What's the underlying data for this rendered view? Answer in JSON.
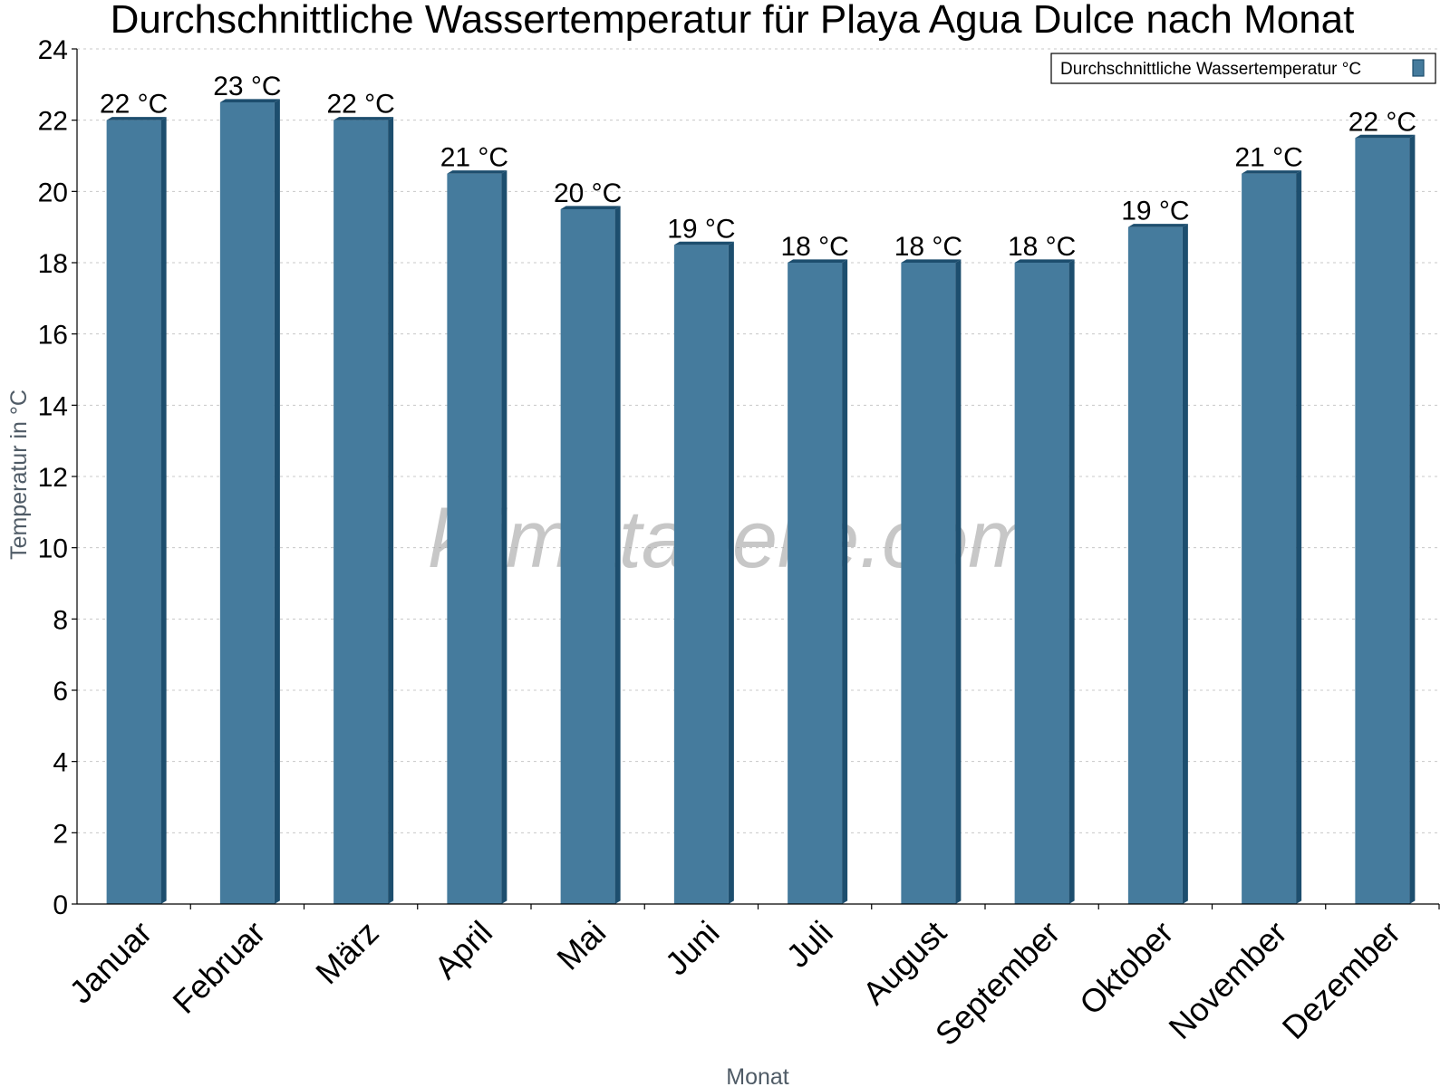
{
  "chart_data": {
    "type": "bar",
    "title": "Durchschnittliche Wassertemperatur für Playa Agua Dulce nach Monat",
    "xlabel": "Monat",
    "ylabel": "Temperatur in °C",
    "ylim": [
      0,
      24
    ],
    "yticks": [
      0,
      2,
      4,
      6,
      8,
      10,
      12,
      14,
      16,
      18,
      20,
      22,
      24
    ],
    "grid": true,
    "legend_position": "top-right",
    "categories": [
      "Januar",
      "Februar",
      "März",
      "April",
      "Mai",
      "Juni",
      "Juli",
      "August",
      "September",
      "Oktober",
      "November",
      "Dezember"
    ],
    "series": [
      {
        "name": "Durchschnittliche Wassertemperatur °C",
        "values": [
          22,
          22.5,
          22,
          20.5,
          19.5,
          18.5,
          18,
          18,
          18,
          19,
          20.5,
          21.5
        ],
        "labels": [
          "22 °C",
          "23 °C",
          "22 °C",
          "21 °C",
          "20 °C",
          "19 °C",
          "18 °C",
          "18 °C",
          "18 °C",
          "19 °C",
          "21 °C",
          "22 °C"
        ],
        "color": "#457b9d",
        "edge_color": "#1d4e6e"
      }
    ],
    "watermark": "klimatabelle.com"
  }
}
